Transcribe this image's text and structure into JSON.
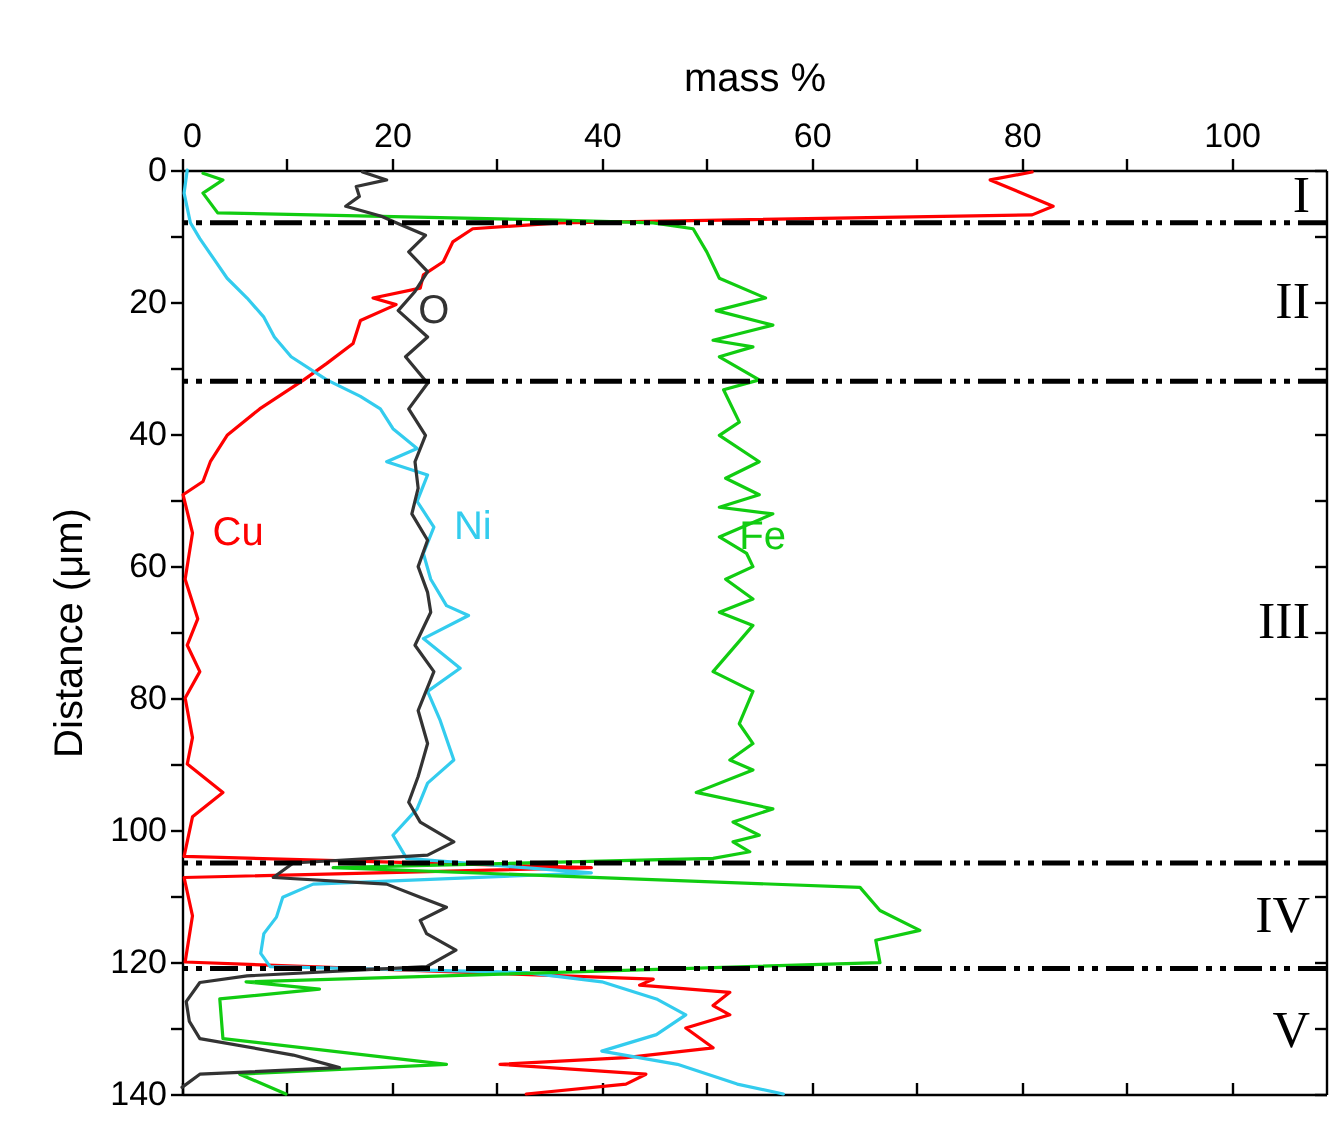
{
  "chart_data": {
    "type": "line",
    "xlabel": "mass %",
    "ylabel": "Distance (μm)",
    "xlim": [
      0,
      109
    ],
    "ylim": [
      140,
      0
    ],
    "xticks": [
      0,
      {
        "value": 10,
        "label": null
      },
      20,
      {
        "value": 30,
        "label": null
      },
      40,
      {
        "value": 50,
        "label": null
      },
      60,
      {
        "value": 70,
        "label": null
      },
      80,
      {
        "value": 90,
        "label": null
      },
      100
    ],
    "yticks": [
      0,
      {
        "value": 10,
        "label": null
      },
      20,
      {
        "value": 30,
        "label": null
      },
      40,
      {
        "value": 50,
        "label": null
      },
      60,
      {
        "value": 70,
        "label": null
      },
      80,
      {
        "value": 90,
        "label": null
      },
      100,
      {
        "value": 110,
        "label": null
      },
      120,
      {
        "value": 130,
        "label": null
      },
      140
    ],
    "series": [
      {
        "name": "Cu",
        "color": "#ff0000",
        "x": [
          81,
          77,
          83,
          81,
          36,
          27.7,
          25.8,
          24.9,
          23,
          22.7,
          18.2,
          20.4,
          17,
          16.3,
          13.8,
          11.6,
          7.4,
          4.3,
          2.7,
          2,
          0.1,
          1,
          0.3,
          1.5,
          0.5,
          1.7,
          0.3,
          1,
          0.5,
          3.9,
          1,
          0.2,
          39,
          0.2,
          1,
          0.3,
          44.9,
          43.6,
          52.2,
          50.6,
          52.2,
          48,
          50.6,
          42.3,
          30.3,
          44.2,
          42.3,
          32.8
        ],
        "values": [
          0.3,
          1.5,
          5.5,
          6.8,
          8,
          8.9,
          10.9,
          13.9,
          15.9,
          17.9,
          19.4,
          20.4,
          22.8,
          26.3,
          29.3,
          31.8,
          36.2,
          40.2,
          44.2,
          47.2,
          49.2,
          55,
          62,
          68,
          72,
          76,
          80,
          86,
          90,
          94.3,
          98,
          104,
          105.7,
          107.2,
          113,
          120,
          122.6,
          123.5,
          124.6,
          126.6,
          128,
          130,
          133,
          134.5,
          135.5,
          137,
          138.5,
          140
        ]
      },
      {
        "name": "Ni",
        "color": "#33ccee",
        "x": [
          0.5,
          0.2,
          0.8,
          1.7,
          3,
          4.3,
          6.2,
          7.8,
          8.8,
          10.4,
          13.8,
          17,
          18.9,
          20.1,
          22.4,
          19.5,
          23.4,
          22.4,
          24,
          23,
          23.7,
          25.2,
          27.3,
          23,
          26.5,
          23.4,
          24.6,
          25.9,
          23.4,
          22.4,
          20.1,
          21.4,
          39,
          12.5,
          9.6,
          9,
          7.8,
          7.5,
          8.4,
          32.8,
          40,
          45.2,
          48,
          45.2,
          40,
          47.2,
          52.9,
          57.3
        ],
        "values": [
          0,
          3.5,
          8,
          10.4,
          13.4,
          16.4,
          19.4,
          22.3,
          25.3,
          28.3,
          31.8,
          34.3,
          36.2,
          39.2,
          42.2,
          44.2,
          46.2,
          50.2,
          54.1,
          58.1,
          62,
          66,
          67.5,
          71,
          75.5,
          79,
          83.4,
          89.4,
          92.9,
          96.8,
          100.8,
          104.3,
          106.5,
          108.2,
          110.2,
          113.2,
          115.7,
          118.7,
          120.7,
          121.6,
          123,
          125.6,
          128,
          131,
          133.5,
          135.5,
          138.5,
          140
        ]
      },
      {
        "name": "Fe",
        "color": "#11cc11",
        "x": [
          2,
          3.9,
          2,
          3.4,
          36,
          44.9,
          48.7,
          50,
          51.2,
          55.6,
          50.9,
          56.3,
          50.6,
          54.4,
          51.2,
          55,
          51.6,
          53.1,
          51.2,
          55,
          51.8,
          55,
          51.2,
          56.3,
          51.2,
          53.8,
          54.4,
          51.8,
          54.4,
          51.2,
          54.4,
          50.6,
          54.4,
          53.1,
          54.4,
          52.2,
          54.4,
          49,
          56.3,
          52.5,
          55,
          52.5,
          54.1,
          50.6,
          14.4,
          64.6,
          66.5,
          70.3,
          66.1,
          66.5,
          6.1,
          13.1,
          3.6,
          3.9,
          25.2,
          5.5,
          9.9
        ],
        "values": [
          0.5,
          1.5,
          3.5,
          6.5,
          7.6,
          8,
          8.9,
          12.4,
          16.4,
          19.4,
          21.3,
          23.5,
          25.8,
          26.8,
          28.3,
          31.8,
          33.3,
          38.2,
          40.2,
          44.2,
          46.7,
          49.2,
          51.1,
          52.1,
          55.6,
          58.1,
          60.1,
          62,
          65,
          67,
          69,
          76,
          79,
          83.9,
          86.9,
          89.4,
          90.9,
          94.3,
          96.8,
          98.8,
          100.8,
          101.8,
          103.3,
          104.3,
          105.7,
          108.7,
          112.2,
          115.2,
          116.7,
          120.1,
          123,
          124.1,
          125.6,
          131.6,
          135.5,
          137,
          140
        ]
      },
      {
        "name": "O",
        "color": "#333333",
        "x": [
          17.2,
          19.5,
          16.6,
          16.9,
          15.6,
          19,
          20.4,
          23.2,
          21.6,
          23.4,
          22.2,
          20.6,
          23.4,
          21.3,
          23.4,
          21.6,
          23.2,
          22.2,
          22.5,
          21.9,
          23.4,
          22.5,
          23.4,
          23.7,
          22.2,
          24,
          22.5,
          23.4,
          22.5,
          21.6,
          22.7,
          25.9,
          23.4,
          10.6,
          8.7,
          19.5,
          22.7,
          25.2,
          22.7,
          23.3,
          26.1,
          23.3,
          6.2,
          1.7,
          0.4,
          0.7,
          1.7,
          10.6,
          15,
          1.7,
          0
        ],
        "values": [
          0.3,
          1.5,
          2.5,
          4,
          5.5,
          7,
          8,
          9.9,
          12.4,
          15.4,
          18.4,
          21.3,
          25.3,
          28.3,
          32.3,
          36.2,
          40.2,
          44.2,
          48.2,
          52.1,
          56.1,
          60.1,
          64,
          67,
          72,
          76,
          81.9,
          86.9,
          91.9,
          95.8,
          98.8,
          101.8,
          103.8,
          105,
          107.2,
          108.2,
          110.2,
          111.7,
          113.7,
          115.7,
          118.2,
          120.7,
          122.1,
          123.1,
          126,
          129,
          131.6,
          134.1,
          136,
          137,
          139
        ]
      }
    ],
    "ref_lines": [
      {
        "axis": "y",
        "value": 8,
        "color": "#000000",
        "line_style": "dashed"
      },
      {
        "axis": "y",
        "value": 32,
        "color": "#000000",
        "line_style": "dashed"
      },
      {
        "axis": "y",
        "value": 105,
        "color": "#000000",
        "line_style": "dashed"
      },
      {
        "axis": "y",
        "value": 121,
        "color": "#000000",
        "line_style": "dashed"
      }
    ],
    "annotations": [
      "I",
      "II",
      "III",
      "IV",
      "V"
    ]
  }
}
